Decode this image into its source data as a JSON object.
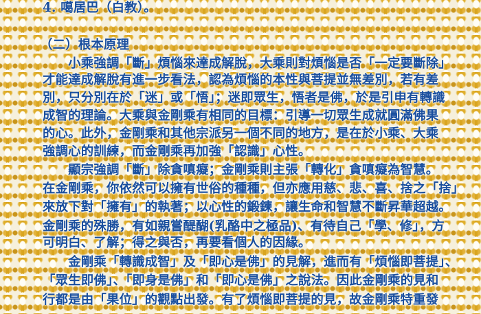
{
  "heading": "4. 噶居巴（白教）。",
  "section_title": "（二）根本原理",
  "lines": [
    "　　小乘強調「斷」煩惱來達成解脫，大乘則對煩惱是否「一定要斷除」",
    "才能達成解脫有進一步看法，認為煩惱的本性與菩提並無差別，若有差",
    "別，只分別在於「迷」或「悟」；迷即眾生，悟者是佛，於是引申有轉識",
    "成智的理論。大乘與金剛乘有相同的目標：引導一切眾生成就圓滿佛果",
    "的心。此外，金剛乘和其他宗派另一個不同的地方，是在於小乘、大乘",
    "強調心的訓練，而金剛乘再加強「認識」心性。",
    "　　顯宗強調「斷」除貪嗔癡；金剛乘則主張「轉化」貪嗔癡為智慧。",
    "在金剛乘，你依然可以擁有世俗的種種，但亦應用慈、悲、喜、捨之「捨」",
    "來放下對「擁有」的執著；以心性的鍛鍊，讓生命和智慧不斷昇華超越。",
    "金剛乘的殊勝，有如親嘗醍醐(乳酪中之極品)、有待自己「學、修」，方",
    "可明白、了解；得之與否，再要看個人的因緣。",
    "　　金剛乘「轉識成智」及「即心是佛」的見解，進而有「煩惱即菩提」、",
    "「眾生即佛」、「即身是佛」和「即心是佛」之說法。因此金剛乘的見和",
    "行都是由「果位」的觀點出發。有了煩惱即菩提的見，故金剛乘特重發"
  ],
  "colors": {
    "text": "#1a4f9e",
    "pattern": "#d9a520",
    "background": "#fffdf5"
  }
}
